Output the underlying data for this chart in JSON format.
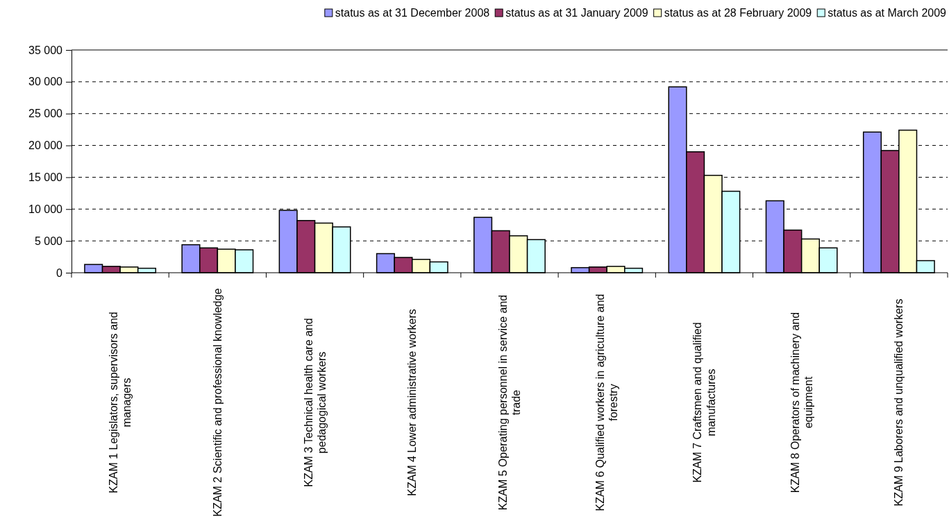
{
  "chart_data": {
    "type": "bar",
    "categories": [
      "KZAM 1 Legislators, supervisors and managers",
      "KZAM 2 Scientific and professional knowledge",
      "KZAM 3 Technical health care and pedagogical workers",
      "KZAM 4 Lower administrative workers",
      "KZAM 5 Operating personnel in service and trade",
      "KZAM 6 Qualified workers in agriculture and forestry",
      "KZAM 7 Craftsmen and qualified manufactures",
      "KZAM 8 Operators of machinery and equipment",
      "KZAM 9 Laborers and unqualified workers"
    ],
    "series": [
      {
        "name": "status as at 31 December 2008",
        "color": "#9999ff",
        "values": [
          1300,
          4400,
          9800,
          3000,
          8700,
          800,
          29200,
          11300,
          22100
        ]
      },
      {
        "name": "status as at 31 January 2009",
        "color": "#993366",
        "values": [
          1000,
          3900,
          8200,
          2400,
          6600,
          900,
          19000,
          6700,
          19200
        ]
      },
      {
        "name": "status as at 28 February 2009",
        "color": "#ffffcc",
        "values": [
          900,
          3700,
          7800,
          2100,
          5800,
          1000,
          15300,
          5300,
          22400
        ]
      },
      {
        "name": "status as at March 2009",
        "color": "#ccffff",
        "values": [
          700,
          3600,
          7200,
          1700,
          5200,
          700,
          12800,
          3900,
          1900
        ]
      }
    ],
    "ylim": [
      0,
      35000
    ],
    "yticks": [
      {
        "value": 0,
        "label": "0"
      },
      {
        "value": 5000,
        "label": "5 000"
      },
      {
        "value": 10000,
        "label": "10 000"
      },
      {
        "value": 15000,
        "label": "15 000"
      },
      {
        "value": 20000,
        "label": "20 000"
      },
      {
        "value": 25000,
        "label": "25 000"
      },
      {
        "value": 30000,
        "label": "30 000"
      },
      {
        "value": 35000,
        "label": "35 000"
      }
    ],
    "grid": "y",
    "legend": "top right"
  }
}
